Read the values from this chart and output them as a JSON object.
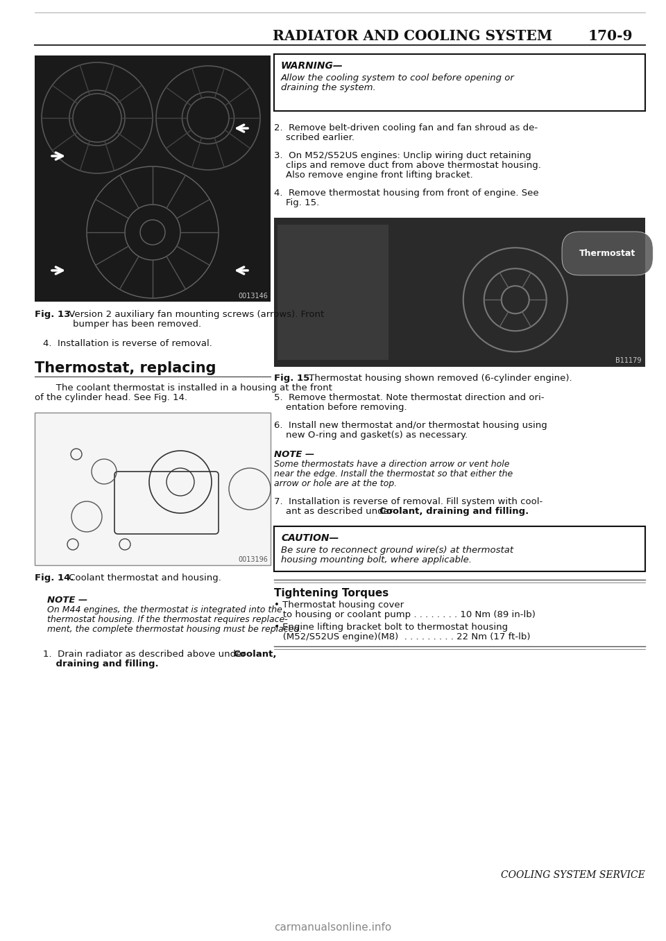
{
  "bg_color": "#ffffff",
  "header_text": "Radiator and Cooling System",
  "page_number": "170-9",
  "fig13_id": "0013146",
  "fig13_caption_bold": "Fig. 13.",
  "fig13_caption_rest": " Version 2 auxiliary fan mounting screws (arrows). Front bumper has been removed.",
  "fig13_caption_rest2": "bumper has been removed.",
  "step4_left": "4.  Installation is reverse of removal.",
  "section_title": "Thermostat, replacing",
  "section_intro1": "   The coolant thermostat is installed in a housing at the front",
  "section_intro2": "of the cylinder head. See Fig. 14.",
  "fig14_id": "0013196",
  "fig14_caption_bold": "Fig. 14.",
  "fig14_caption_rest": " Coolant thermostat and housing.",
  "note1_title": "NOTE —",
  "note1_line1": "On M44 engines, the thermostat is integrated into the",
  "note1_line2": "thermostat housing. If the thermostat requires replace-",
  "note1_line3": "ment, the complete thermostat housing must be replaced.",
  "step1_pre": "1.  Drain radiator as described above under ",
  "step1_bold": "Coolant,",
  "step1_line2_bold": "draining and filling.",
  "warning_title": "WARNING—",
  "warning_line1": "Allow the cooling system to cool before opening or",
  "warning_line2": "draining the system.",
  "step2_line1": "2.  Remove belt-driven cooling fan and fan shroud as de-",
  "step2_line2": "    scribed earlier.",
  "step3_line1": "3.  On M52/S52US engines: Unclip wiring duct retaining",
  "step3_line2": "    clips and remove duct from above thermostat housing.",
  "step3_line3": "    Also remove engine front lifting bracket.",
  "step4r_line1": "4.  Remove thermostat housing from front of engine. See",
  "step4r_line2": "    Fig. 15.",
  "fig15_id": "B11179",
  "fig15_caption_bold": "Fig. 15.",
  "fig15_caption_rest": " Thermostat housing shown removed (6-cylinder engine).",
  "step5_line1": "5.  Remove thermostat. Note thermostat direction and ori-",
  "step5_line2": "    entation before removing.",
  "step6_line1": "6.  Install new thermostat and/or thermostat housing using",
  "step6_line2": "    new O-ring and gasket(s) as necessary.",
  "note2_title": "NOTE —",
  "note2_line1": "Some thermostats have a direction arrow or vent hole",
  "note2_line2": "near the edge. Install the thermostat so that either the",
  "note2_line3": "arrow or hole are at the top.",
  "step7_line1": "7.  Installation is reverse of removal. Fill system with cool-",
  "step7_line2_pre": "    ant as described under ",
  "step7_line2_bold": "Coolant, draining and filling.",
  "caution_title": "CAUTION—",
  "caution_line1": "Be sure to reconnect ground wire(s) at thermostat",
  "caution_line2": "housing mounting bolt, where applicable.",
  "torque_title": "Tightening Torques",
  "torque_b1": "• Thermostat housing cover",
  "torque_b1b": "   to housing or coolant pump . . . . . . . . 10 Nm (89 in-lb)",
  "torque_b2": "• Engine lifting bracket bolt to thermostat housing",
  "torque_b2b": "   (M52/S52US engine)(M8)  . . . . . . . . . 22 Nm (17 ft-lb)",
  "footer": "Cooling System Service",
  "watermark": "carmanualsonline.info"
}
